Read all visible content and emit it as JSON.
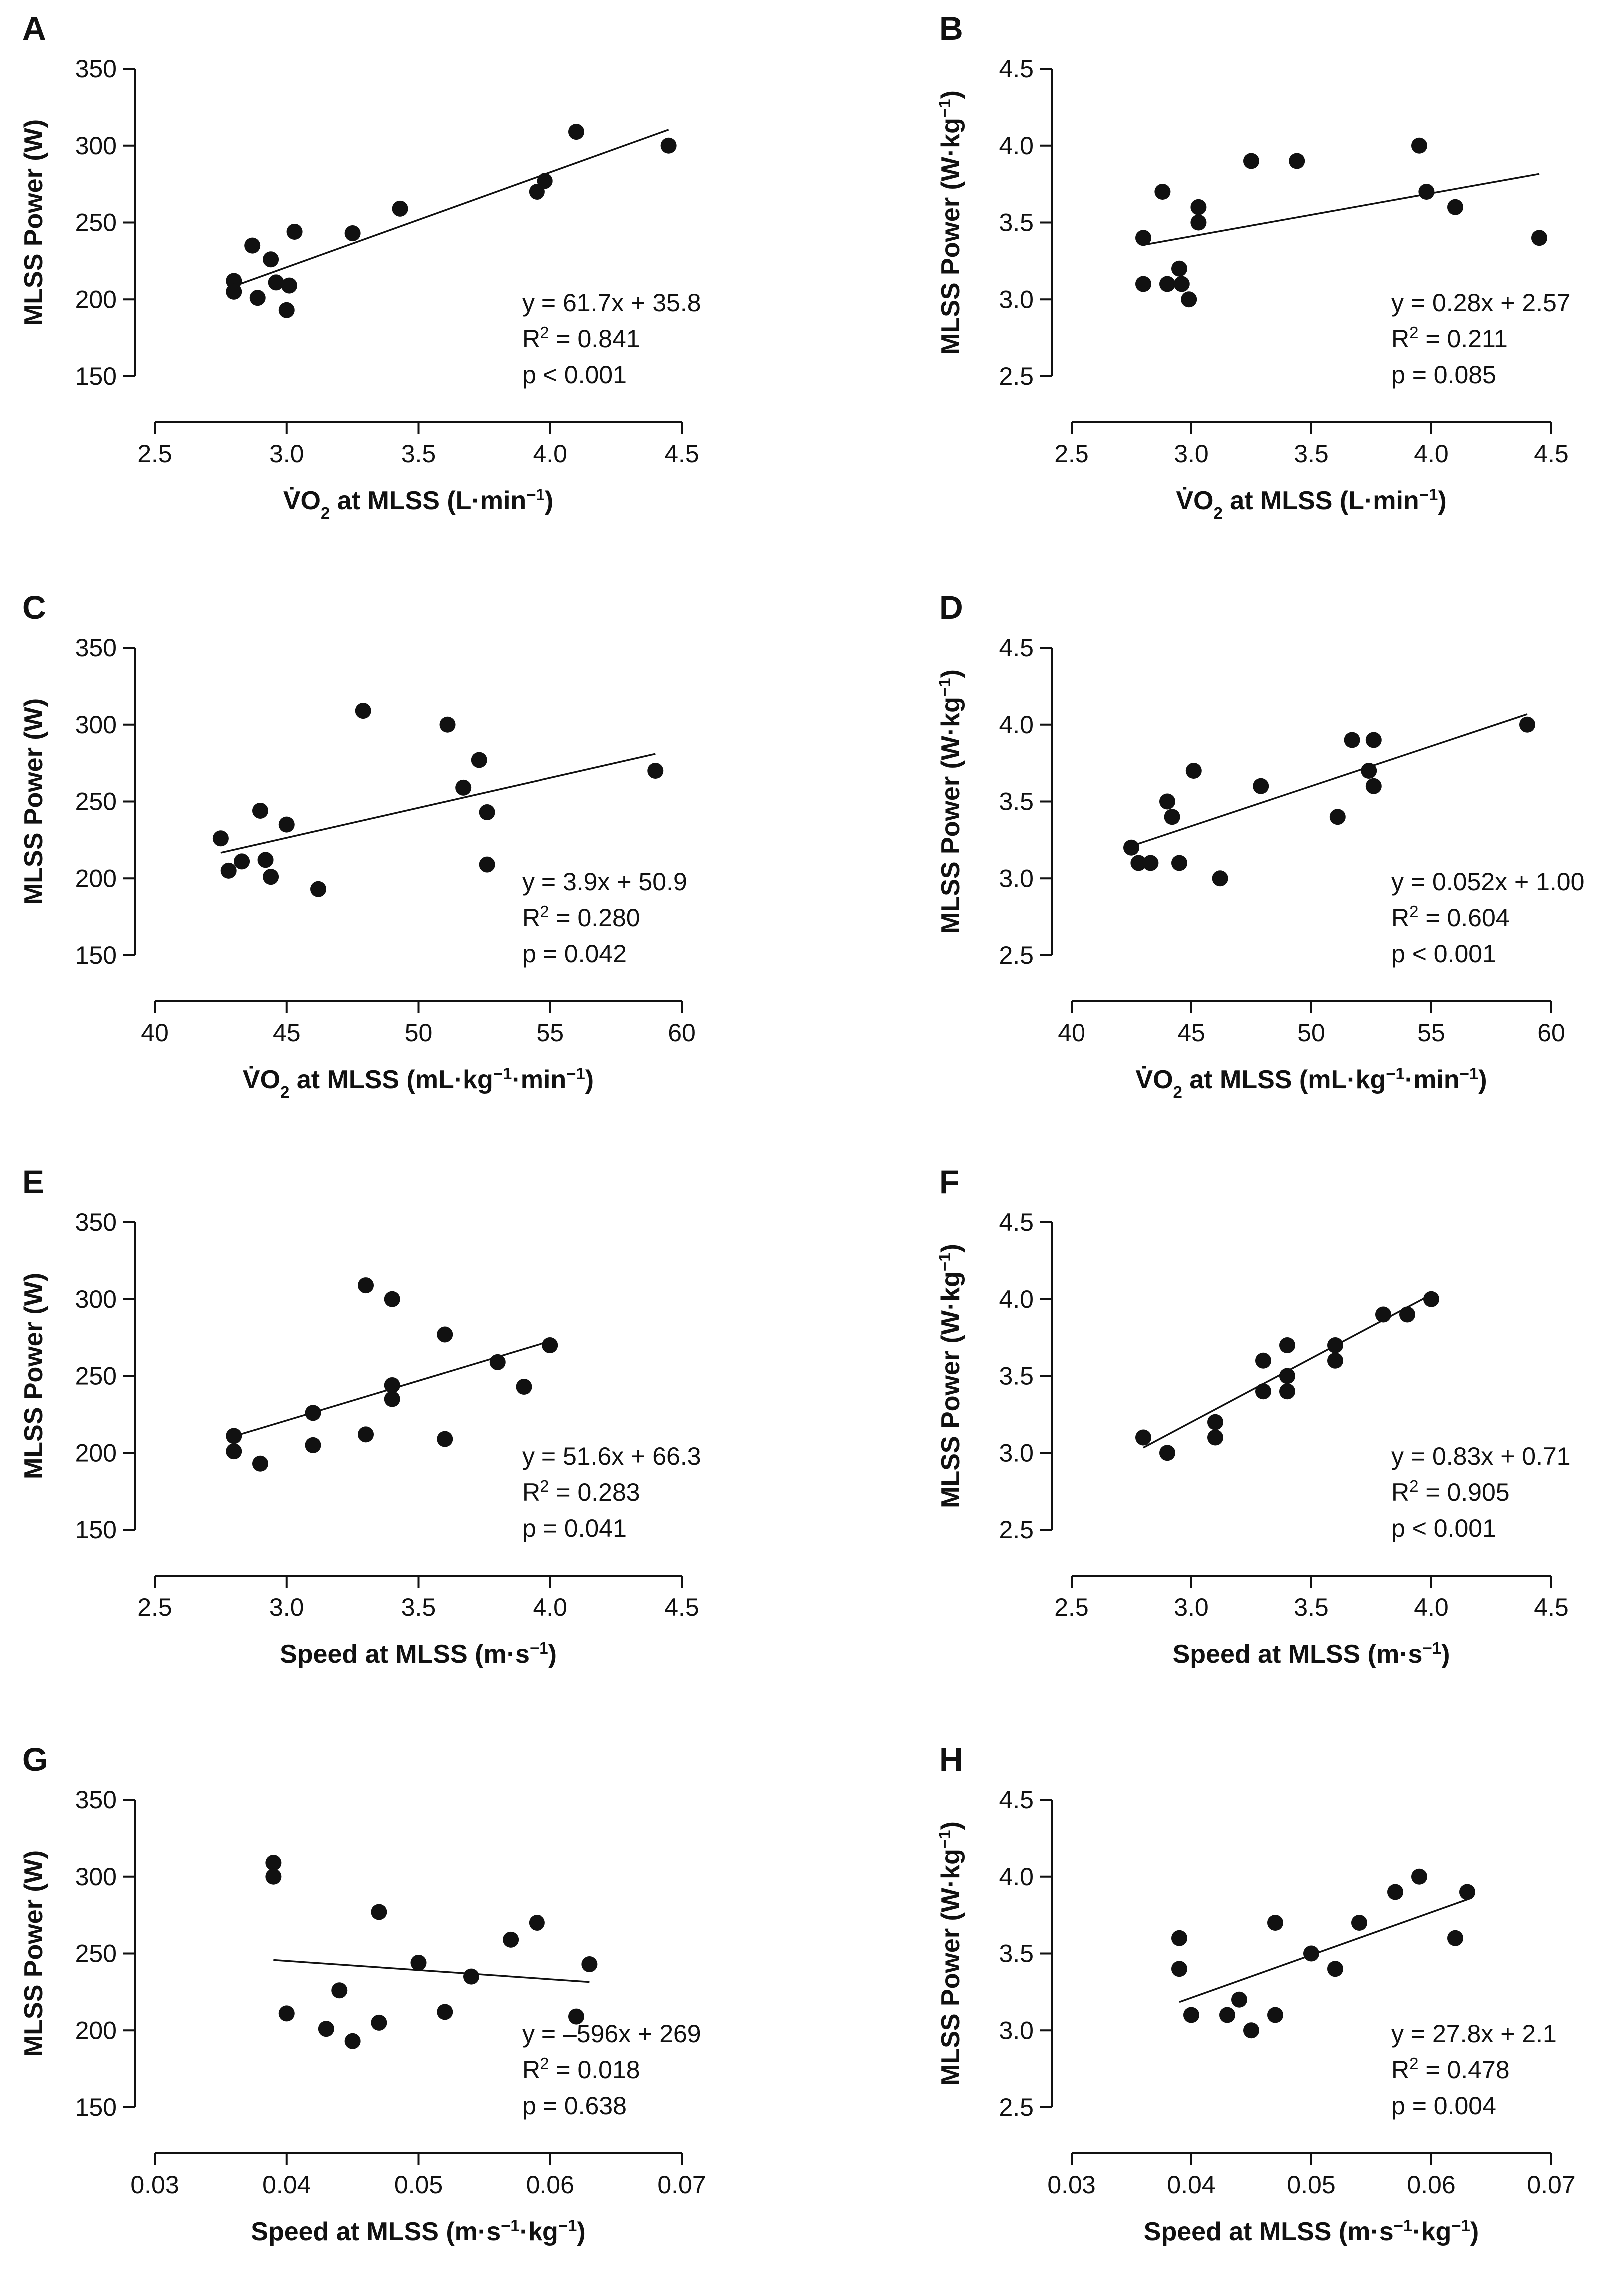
{
  "figure": {
    "background": "#ffffff",
    "ink_color": "#111111"
  },
  "chart_data": [
    {
      "panel": "A",
      "type": "scatter",
      "xlabel": [
        "V̇O",
        {
          "sub": "2"
        },
        " at MLSS (L·min",
        {
          "sup": "−1"
        },
        ")"
      ],
      "ylabel": [
        "MLSS Power (W)"
      ],
      "xlim": [
        2.5,
        4.5
      ],
      "xticks": [
        2.5,
        3.0,
        3.5,
        4.0,
        4.5
      ],
      "xtick_labels": [
        "2.5",
        "3.0",
        "3.5",
        "4.0",
        "4.5"
      ],
      "ylim": [
        150,
        350
      ],
      "yticks": [
        150,
        200,
        250,
        300,
        350
      ],
      "ytick_labels": [
        "150",
        "200",
        "250",
        "300",
        "350"
      ],
      "x": [
        2.8,
        2.8,
        2.87,
        2.89,
        2.94,
        2.96,
        3.0,
        3.01,
        3.03,
        3.25,
        3.43,
        3.95,
        3.98,
        4.1,
        4.45
      ],
      "y": [
        212,
        205,
        235,
        201,
        226,
        211,
        193,
        209,
        244,
        243,
        259,
        270,
        277,
        309,
        300
      ],
      "fit": {
        "slope": 61.7,
        "intercept": 35.8,
        "x_range": [
          2.8,
          4.45
        ]
      },
      "stats": {
        "equation": "y = 61.7x + 35.8",
        "r2_label": "R",
        "r2_sup": "2",
        "r2_value": " = 0.841",
        "p": "p < 0.001"
      }
    },
    {
      "panel": "B",
      "type": "scatter",
      "xlabel": [
        "V̇O",
        {
          "sub": "2"
        },
        " at MLSS (L·min",
        {
          "sup": "−1"
        },
        ")"
      ],
      "ylabel": [
        "MLSS Power (W·kg",
        {
          "sup": "−1"
        },
        ")"
      ],
      "xlim": [
        2.5,
        4.5
      ],
      "xticks": [
        2.5,
        3.0,
        3.5,
        4.0,
        4.5
      ],
      "xtick_labels": [
        "2.5",
        "3.0",
        "3.5",
        "4.0",
        "4.5"
      ],
      "ylim": [
        2.5,
        4.5
      ],
      "yticks": [
        2.5,
        3.0,
        3.5,
        4.0,
        4.5
      ],
      "ytick_labels": [
        "2.5",
        "3.0",
        "3.5",
        "4.0",
        "4.5"
      ],
      "x": [
        2.8,
        2.8,
        2.88,
        2.9,
        2.95,
        2.96,
        2.99,
        3.03,
        3.03,
        3.25,
        3.44,
        3.95,
        3.98,
        4.1,
        4.45
      ],
      "y": [
        3.4,
        3.1,
        3.7,
        3.1,
        3.2,
        3.1,
        3.0,
        3.6,
        3.5,
        3.9,
        3.9,
        4.0,
        3.7,
        3.6,
        3.4
      ],
      "fit": {
        "slope": 0.28,
        "intercept": 2.57,
        "x_range": [
          2.8,
          4.45
        ]
      },
      "stats": {
        "equation": "y = 0.28x + 2.57",
        "r2_label": "R",
        "r2_sup": "2",
        "r2_value": " = 0.211",
        "p": "p = 0.085"
      }
    },
    {
      "panel": "C",
      "type": "scatter",
      "xlabel": [
        "V̇O",
        {
          "sub": "2"
        },
        " at MLSS (mL·kg",
        {
          "sup": "−1"
        },
        "·min",
        {
          "sup": "−1"
        },
        ")"
      ],
      "ylabel": [
        "MLSS Power (W)"
      ],
      "xlim": [
        40,
        60
      ],
      "xticks": [
        40,
        45,
        50,
        55,
        60
      ],
      "xtick_labels": [
        "40",
        "45",
        "50",
        "55",
        "60"
      ],
      "ylim": [
        150,
        350
      ],
      "yticks": [
        150,
        200,
        250,
        300,
        350
      ],
      "ytick_labels": [
        "150",
        "200",
        "250",
        "300",
        "350"
      ],
      "x": [
        42.5,
        42.8,
        43.3,
        44.0,
        44.2,
        44.4,
        45.0,
        46.2,
        47.9,
        51.1,
        51.7,
        52.3,
        52.6,
        52.6,
        59.0
      ],
      "y": [
        226,
        205,
        211,
        244,
        212,
        201,
        235,
        193,
        309,
        300,
        259,
        277,
        243,
        209,
        270
      ],
      "fit": {
        "slope": 3.9,
        "intercept": 50.9,
        "x_range": [
          42.5,
          59.0
        ]
      },
      "stats": {
        "equation": "y = 3.9x + 50.9",
        "r2_label": "R",
        "r2_sup": "2",
        "r2_value": " = 0.280",
        "p": "p = 0.042"
      }
    },
    {
      "panel": "D",
      "type": "scatter",
      "xlabel": [
        "V̇O",
        {
          "sub": "2"
        },
        " at MLSS (mL·kg",
        {
          "sup": "−1"
        },
        "·min",
        {
          "sup": "−1"
        },
        ")"
      ],
      "ylabel": [
        "MLSS Power (W·kg",
        {
          "sup": "−1"
        },
        ")"
      ],
      "xlim": [
        40,
        60
      ],
      "xticks": [
        40,
        45,
        50,
        55,
        60
      ],
      "xtick_labels": [
        "40",
        "45",
        "50",
        "55",
        "60"
      ],
      "ylim": [
        2.5,
        4.5
      ],
      "yticks": [
        2.5,
        3.0,
        3.5,
        4.0,
        4.5
      ],
      "ytick_labels": [
        "2.5",
        "3.0",
        "3.5",
        "4.0",
        "4.5"
      ],
      "x": [
        42.5,
        42.8,
        43.3,
        44.0,
        44.2,
        44.5,
        45.1,
        46.2,
        47.9,
        51.1,
        51.7,
        52.4,
        52.6,
        52.6,
        59.0
      ],
      "y": [
        3.2,
        3.1,
        3.1,
        3.5,
        3.4,
        3.1,
        3.7,
        3.0,
        3.6,
        3.4,
        3.9,
        3.7,
        3.9,
        3.6,
        4.0
      ],
      "fit": {
        "slope": 0.052,
        "intercept": 1.0,
        "x_range": [
          42.5,
          59.0
        ]
      },
      "stats": {
        "equation": "y = 0.052x + 1.00",
        "r2_label": "R",
        "r2_sup": "2",
        "r2_value": " = 0.604",
        "p": "p < 0.001"
      }
    },
    {
      "panel": "E",
      "type": "scatter",
      "xlabel": [
        "Speed at MLSS (m·s",
        {
          "sup": "−1"
        },
        ")"
      ],
      "ylabel": [
        "MLSS Power (W)"
      ],
      "xlim": [
        2.5,
        4.5
      ],
      "xticks": [
        2.5,
        3.0,
        3.5,
        4.0,
        4.5
      ],
      "xtick_labels": [
        "2.5",
        "3.0",
        "3.5",
        "4.0",
        "4.5"
      ],
      "ylim": [
        150,
        350
      ],
      "yticks": [
        150,
        200,
        250,
        300,
        350
      ],
      "ytick_labels": [
        "150",
        "200",
        "250",
        "300",
        "350"
      ],
      "x": [
        2.8,
        2.8,
        2.9,
        3.1,
        3.1,
        3.3,
        3.3,
        3.4,
        3.4,
        3.4,
        3.6,
        3.6,
        3.8,
        3.9,
        4.0
      ],
      "y": [
        211,
        201,
        193,
        226,
        205,
        309,
        212,
        300,
        244,
        235,
        277,
        209,
        259,
        243,
        270
      ],
      "fit": {
        "slope": 51.6,
        "intercept": 66.3,
        "x_range": [
          2.8,
          4.0
        ]
      },
      "stats": {
        "equation": "y = 51.6x + 66.3",
        "r2_label": "R",
        "r2_sup": "2",
        "r2_value": " = 0.283",
        "p": "p = 0.041"
      }
    },
    {
      "panel": "F",
      "type": "scatter",
      "xlabel": [
        "Speed at MLSS (m·s",
        {
          "sup": "−1"
        },
        ")"
      ],
      "ylabel": [
        "MLSS Power (W·kg",
        {
          "sup": "−1"
        },
        ")"
      ],
      "xlim": [
        2.5,
        4.5
      ],
      "xticks": [
        2.5,
        3.0,
        3.5,
        4.0,
        4.5
      ],
      "xtick_labels": [
        "2.5",
        "3.0",
        "3.5",
        "4.0",
        "4.5"
      ],
      "ylim": [
        2.5,
        4.5
      ],
      "yticks": [
        2.5,
        3.0,
        3.5,
        4.0,
        4.5
      ],
      "ytick_labels": [
        "2.5",
        "3.0",
        "3.5",
        "4.0",
        "4.5"
      ],
      "x": [
        2.8,
        2.9,
        3.1,
        3.1,
        3.3,
        3.3,
        3.4,
        3.4,
        3.4,
        3.6,
        3.6,
        3.8,
        3.9,
        4.0
      ],
      "y": [
        3.1,
        3.0,
        3.2,
        3.1,
        3.6,
        3.4,
        3.7,
        3.5,
        3.4,
        3.7,
        3.6,
        3.9,
        3.9,
        4.0
      ],
      "fit": {
        "slope": 0.83,
        "intercept": 0.71,
        "x_range": [
          2.8,
          4.0
        ]
      },
      "stats": {
        "equation": "y = 0.83x + 0.71",
        "r2_label": "R",
        "r2_sup": "2",
        "r2_value": " = 0.905",
        "p": "p < 0.001"
      }
    },
    {
      "panel": "G",
      "type": "scatter",
      "xlabel": [
        "Speed at MLSS (m·s",
        {
          "sup": "−1"
        },
        "·kg",
        {
          "sup": "−1"
        },
        ")"
      ],
      "ylabel": [
        "MLSS Power (W)"
      ],
      "xlim": [
        0.03,
        0.07
      ],
      "xticks": [
        0.03,
        0.04,
        0.05,
        0.06,
        0.07
      ],
      "xtick_labels": [
        "0.03",
        "0.04",
        "0.05",
        "0.06",
        "0.07"
      ],
      "ylim": [
        150,
        350
      ],
      "yticks": [
        150,
        200,
        250,
        300,
        350
      ],
      "ytick_labels": [
        "150",
        "200",
        "250",
        "300",
        "350"
      ],
      "x": [
        0.039,
        0.039,
        0.04,
        0.043,
        0.044,
        0.045,
        0.047,
        0.047,
        0.05,
        0.052,
        0.054,
        0.057,
        0.059,
        0.062,
        0.063
      ],
      "y": [
        309,
        300,
        211,
        201,
        226,
        193,
        277,
        205,
        244,
        212,
        235,
        259,
        270,
        209,
        243
      ],
      "fit": {
        "slope": -596,
        "intercept": 269,
        "x_range": [
          0.039,
          0.063
        ]
      },
      "stats": {
        "equation": "y = –596x + 269",
        "r2_label": "R",
        "r2_sup": "2",
        "r2_value": " = 0.018",
        "p": "p = 0.638"
      }
    },
    {
      "panel": "H",
      "type": "scatter",
      "xlabel": [
        "Speed at MLSS (m·s",
        {
          "sup": "−1"
        },
        "·kg",
        {
          "sup": "−1"
        },
        ")"
      ],
      "ylabel": [
        "MLSS Power (W·kg",
        {
          "sup": "−1"
        },
        ")"
      ],
      "xlim": [
        0.03,
        0.07
      ],
      "xticks": [
        0.03,
        0.04,
        0.05,
        0.06,
        0.07
      ],
      "xtick_labels": [
        "0.03",
        "0.04",
        "0.05",
        "0.06",
        "0.07"
      ],
      "ylim": [
        2.5,
        4.5
      ],
      "yticks": [
        2.5,
        3.0,
        3.5,
        4.0,
        4.5
      ],
      "ytick_labels": [
        "2.5",
        "3.0",
        "3.5",
        "4.0",
        "4.5"
      ],
      "x": [
        0.039,
        0.039,
        0.04,
        0.043,
        0.044,
        0.045,
        0.047,
        0.047,
        0.05,
        0.052,
        0.054,
        0.057,
        0.059,
        0.062,
        0.063
      ],
      "y": [
        3.6,
        3.4,
        3.1,
        3.1,
        3.2,
        3.0,
        3.7,
        3.1,
        3.5,
        3.4,
        3.7,
        3.9,
        4.0,
        3.6,
        3.9
      ],
      "fit": {
        "slope": 27.8,
        "intercept": 2.1,
        "x_range": [
          0.039,
          0.063
        ]
      },
      "stats": {
        "equation": "y = 27.8x + 2.1",
        "r2_label": "R",
        "r2_sup": "2",
        "r2_value": " = 0.478",
        "p": "p = 0.004"
      }
    }
  ]
}
